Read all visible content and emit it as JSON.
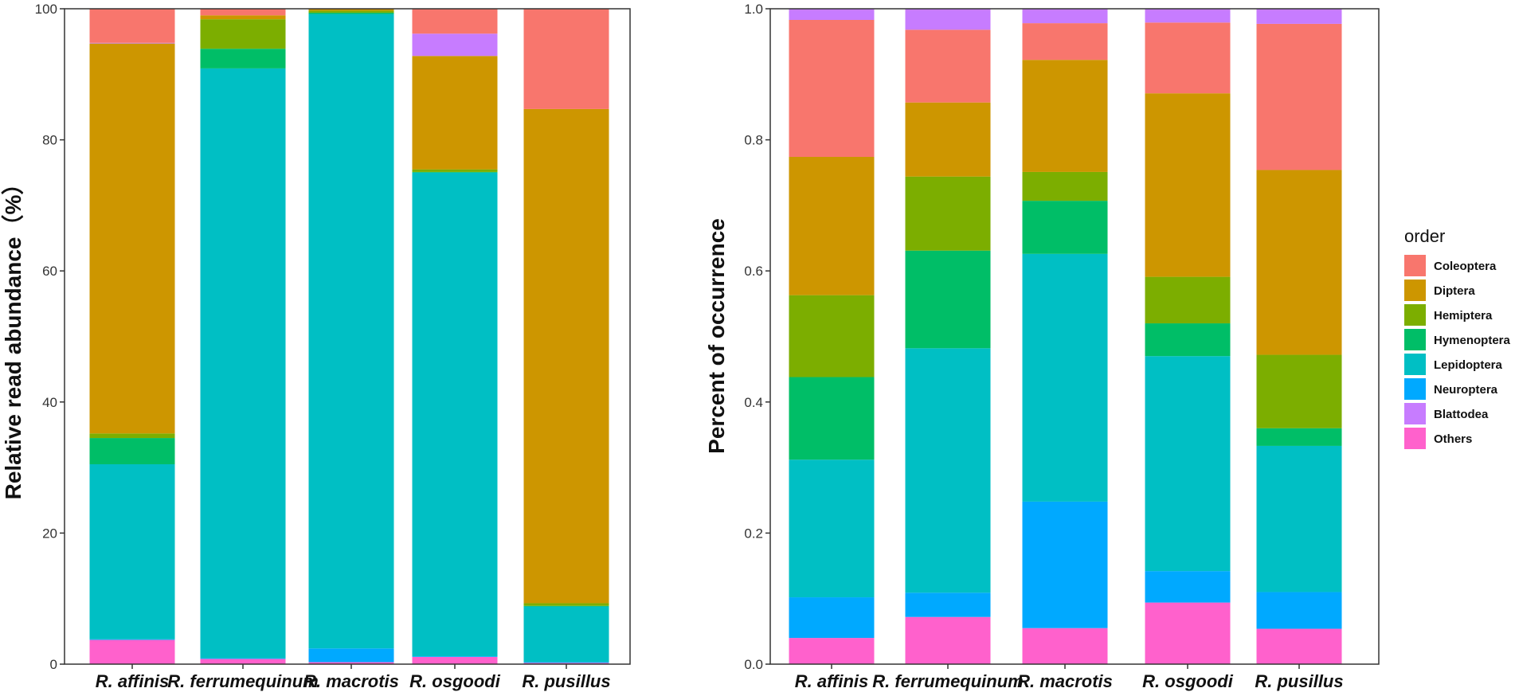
{
  "colors": {
    "Coleoptera": "#F8766D",
    "Diptera": "#CD9600",
    "Hemiptera": "#7CAE00",
    "Hymenoptera": "#00BE67",
    "Lepidoptera": "#00BFC4",
    "Neuroptera": "#00A9FF",
    "Blattodea": "#C77CFF",
    "Others": "#FF61CC"
  },
  "legend": {
    "title": "order",
    "entries": [
      "Coleoptera",
      "Diptera",
      "Hemiptera",
      "Hymenoptera",
      "Lepidoptera",
      "Neuroptera",
      "Blattodea",
      "Others"
    ]
  },
  "chart_data": [
    {
      "type": "bar",
      "stacked": true,
      "title": "",
      "xlabel": "",
      "ylabel": "Relative read abundance（%）",
      "ylim": [
        0,
        100
      ],
      "yticks": [
        0,
        20,
        40,
        60,
        80,
        100
      ],
      "ytick_labels": [
        "0",
        "20",
        "40",
        "60",
        "80",
        "100"
      ],
      "categories": [
        "R. affinis",
        "R. ferrumequinum",
        "R. macrotis",
        "R. osgoodi",
        "R. pusillus"
      ],
      "series": [
        {
          "name": "Others",
          "values": [
            3.7,
            0.8,
            0.3,
            1.1,
            0.2
          ]
        },
        {
          "name": "Neuroptera",
          "values": [
            0.1,
            0.1,
            2.1,
            0.1,
            0.1
          ]
        },
        {
          "name": "Lepidoptera",
          "values": [
            26.7,
            90.0,
            96.8,
            73.8,
            8.5
          ]
        },
        {
          "name": "Hymenoptera",
          "values": [
            4.0,
            3.0,
            0.2,
            0.1,
            0.1
          ]
        },
        {
          "name": "Hemiptera",
          "values": [
            0.7,
            4.5,
            0.3,
            0.4,
            0.4
          ]
        },
        {
          "name": "Diptera",
          "values": [
            59.5,
            0.6,
            0.5,
            17.3,
            75.4
          ]
        },
        {
          "name": "Blattodea",
          "values": [
            0.1,
            0.0,
            0.0,
            3.4,
            0.0
          ]
        },
        {
          "name": "Coleoptera",
          "values": [
            5.2,
            1.0,
            0.0,
            3.8,
            15.3
          ]
        }
      ]
    },
    {
      "type": "bar",
      "stacked": true,
      "title": "",
      "xlabel": "",
      "ylabel": "Percent of occurrence",
      "ylim": [
        0,
        1
      ],
      "yticks": [
        0,
        0.2,
        0.4,
        0.6,
        0.8,
        1.0
      ],
      "ytick_labels": [
        "0.0",
        "0.2",
        "0.4",
        "0.6",
        "0.8",
        "1.0"
      ],
      "categories": [
        "R. affinis",
        "R. ferrumequinum",
        "R. macrotis",
        "R. osgoodi",
        "R. pusillus"
      ],
      "series": [
        {
          "name": "Others",
          "values": [
            0.04,
            0.072,
            0.055,
            0.094,
            0.054
          ]
        },
        {
          "name": "Neuroptera",
          "values": [
            0.062,
            0.037,
            0.193,
            0.048,
            0.056
          ]
        },
        {
          "name": "Lepidoptera",
          "values": [
            0.21,
            0.373,
            0.378,
            0.328,
            0.223
          ]
        },
        {
          "name": "Hymenoptera",
          "values": [
            0.126,
            0.149,
            0.081,
            0.05,
            0.027
          ]
        },
        {
          "name": "Hemiptera",
          "values": [
            0.125,
            0.113,
            0.044,
            0.071,
            0.112
          ]
        },
        {
          "name": "Diptera",
          "values": [
            0.211,
            0.113,
            0.171,
            0.28,
            0.282
          ]
        },
        {
          "name": "Coleoptera",
          "values": [
            0.209,
            0.111,
            0.056,
            0.108,
            0.223
          ]
        },
        {
          "name": "Blattodea",
          "values": [
            0.017,
            0.032,
            0.022,
            0.021,
            0.026
          ]
        }
      ]
    }
  ]
}
